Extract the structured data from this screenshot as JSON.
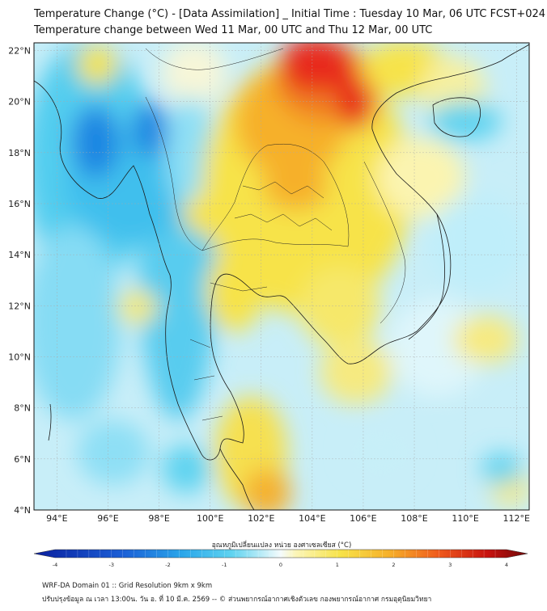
{
  "title": {
    "line1": "Temperature Change (°C) - [Data Assimilation] _ Initial Time : Tuesday 10 Mar, 06 UTC FCST+024",
    "line2": "Temperature change between Wed 11 Mar, 00 UTC and Thu 12 Mar, 00 UTC"
  },
  "axes": {
    "lat_labels": [
      "22°N",
      "20°N",
      "18°N",
      "16°N",
      "14°N",
      "12°N",
      "10°N",
      "8°N",
      "6°N",
      "4°N"
    ],
    "lon_labels": [
      "94°E",
      "96°E",
      "98°E",
      "100°E",
      "102°E",
      "104°E",
      "106°E",
      "108°E",
      "110°E",
      "112°E"
    ],
    "lat_range": [
      4,
      22.3
    ],
    "lon_range": [
      93.1,
      112.5
    ]
  },
  "colorbar": {
    "title": "อุณหภูมิเปลี่ยนแปลง หน่วย องศาเซลเซียส (°C)",
    "min": -4,
    "max": 4,
    "tick_labels": [
      "-4",
      "-3",
      "-2",
      "-1",
      "0",
      "1",
      "2",
      "3",
      "4"
    ]
  },
  "colors": {
    "deep_blue": "#0a1f9e",
    "blue": "#1e7fe0",
    "light_blue": "#46c8ee",
    "pale_blue": "#bfeefa",
    "white": "#f6fbfd",
    "pale_yellow": "#fbf3a0",
    "yellow": "#f6e43a",
    "orange": "#f5a623",
    "red": "#e8291a",
    "dark_red": "#7a0a0a"
  },
  "footer": {
    "line1": "WRF-DA Domain 01 :: Grid Resolution 9km x 9km",
    "line2": "ปรับปรุงข้อมูล ณ เวลา 13:00น. วัน อ. ที่ 10 มี.ค. 2569 -- © ส่วนพยากรณ์อากาศเชิงตัวเลข กองพยากรณ์อากาศ กรมอุตุนิยมวิทยา"
  }
}
